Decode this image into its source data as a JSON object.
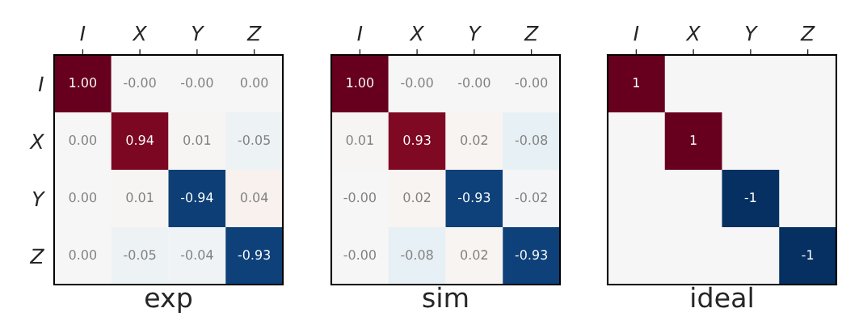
{
  "chart_data": [
    {
      "type": "heatmap",
      "xlabel": "exp",
      "categories": [
        "I",
        "X",
        "Y",
        "Z"
      ],
      "y_categories": [
        "I",
        "X",
        "Y",
        "Z"
      ],
      "cells": [
        [
          1.0,
          -0.0,
          -0.0,
          0.0
        ],
        [
          0.0,
          0.94,
          0.01,
          -0.05
        ],
        [
          0.0,
          0.01,
          -0.94,
          0.04
        ],
        [
          0.0,
          -0.05,
          -0.04,
          -0.93
        ]
      ],
      "cell_labels": [
        [
          "1.00",
          "-0.00",
          "-0.00",
          "0.00"
        ],
        [
          "0.00",
          "0.94",
          "0.01",
          "-0.05"
        ],
        [
          "0.00",
          "0.01",
          "-0.94",
          "0.04"
        ],
        [
          "0.00",
          "-0.05",
          "-0.04",
          "-0.93"
        ]
      ]
    },
    {
      "type": "heatmap",
      "xlabel": "sim",
      "categories": [
        "I",
        "X",
        "Y",
        "Z"
      ],
      "y_categories": [
        null,
        null,
        null,
        null
      ],
      "cells": [
        [
          1.0,
          -0.0,
          -0.0,
          -0.0
        ],
        [
          0.01,
          0.93,
          0.02,
          -0.08
        ],
        [
          -0.0,
          0.02,
          -0.93,
          -0.02
        ],
        [
          -0.0,
          -0.08,
          0.02,
          -0.93
        ]
      ],
      "cell_labels": [
        [
          "1.00",
          "-0.00",
          "-0.00",
          "-0.00"
        ],
        [
          "0.01",
          "0.93",
          "0.02",
          "-0.08"
        ],
        [
          "-0.00",
          "0.02",
          "-0.93",
          "-0.02"
        ],
        [
          "-0.00",
          "-0.08",
          "0.02",
          "-0.93"
        ]
      ]
    },
    {
      "type": "heatmap",
      "xlabel": "ideal",
      "categories": [
        "I",
        "X",
        "Y",
        "Z"
      ],
      "y_categories": [
        null,
        null,
        null,
        null
      ],
      "data_labels": true,
      "cells": [
        [
          1,
          null,
          null,
          null
        ],
        [
          null,
          1,
          null,
          null
        ],
        [
          null,
          null,
          -1,
          null
        ],
        [
          null,
          null,
          null,
          -1
        ]
      ]
    }
  ]
}
